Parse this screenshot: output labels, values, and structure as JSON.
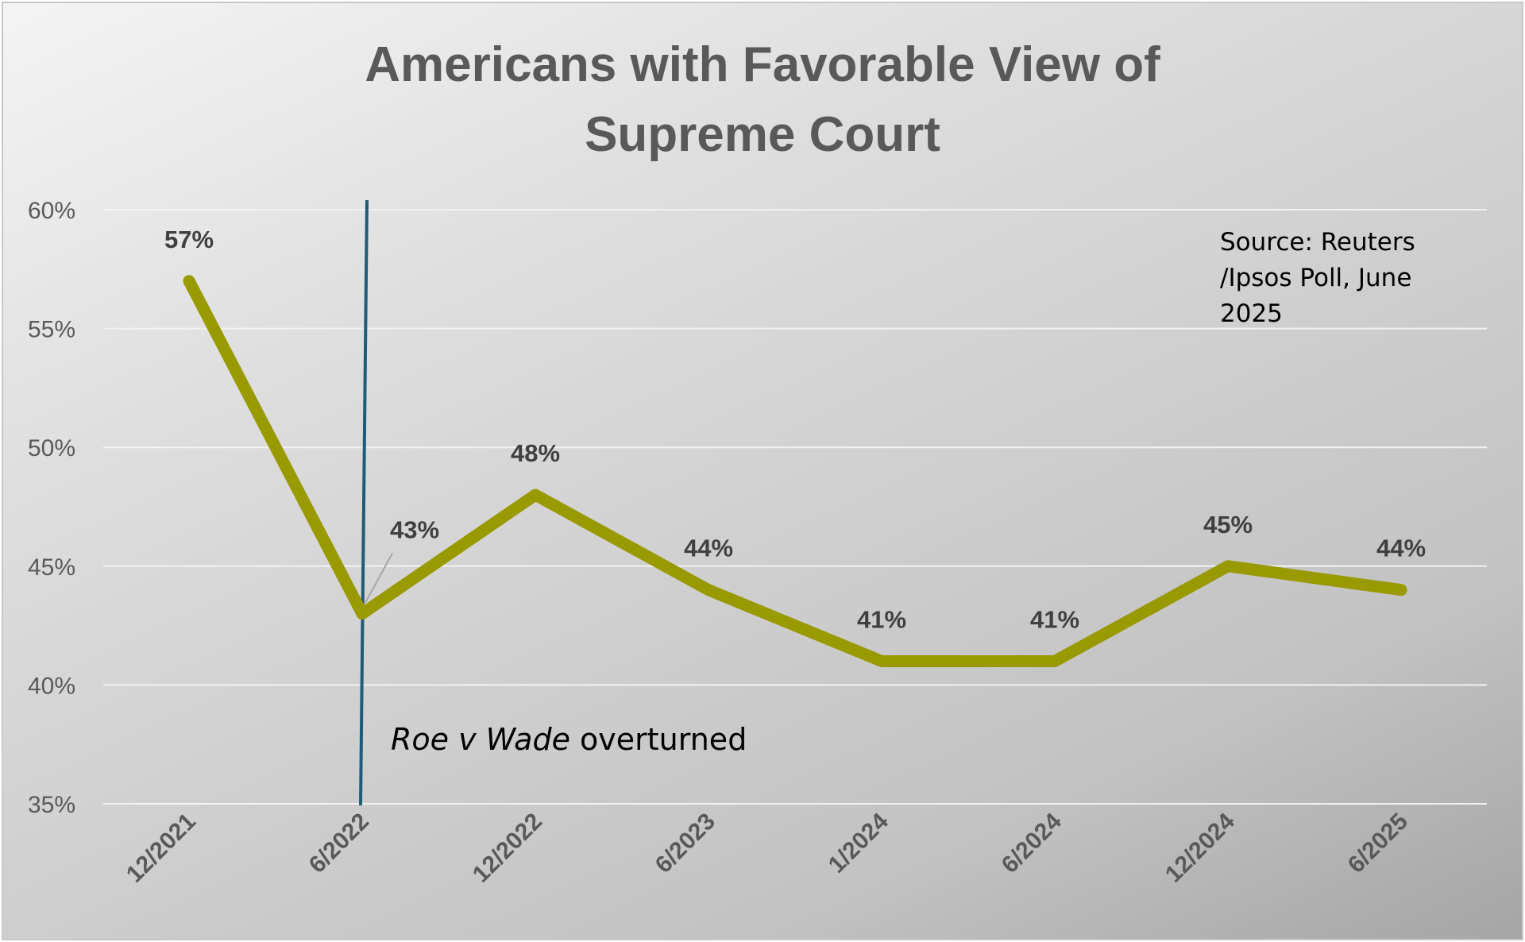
{
  "chart_data": {
    "type": "line",
    "title": "Americans with Favorable View of Supreme Court",
    "title_lines": [
      "Americans with Favorable View of",
      "Supreme Court"
    ],
    "categories": [
      "12/2021",
      "6/2022",
      "12/2022",
      "6/2023",
      "1/2024",
      "6/2024",
      "12/2024",
      "6/2025"
    ],
    "series": [
      {
        "values": [
          57,
          43,
          48,
          44,
          41,
          41,
          45,
          44
        ],
        "color": "#999900"
      }
    ],
    "data_labels": [
      "57%",
      "43%",
      "48%",
      "44%",
      "41%",
      "41%",
      "45%",
      "44%"
    ],
    "y_ticks": [
      {
        "value": 60,
        "label": "60%"
      },
      {
        "value": 55,
        "label": "55%"
      },
      {
        "value": 50,
        "label": "50%"
      },
      {
        "value": 45,
        "label": "45%"
      },
      {
        "value": 40,
        "label": "40%"
      },
      {
        "value": 35,
        "label": "35%"
      }
    ],
    "ylim": [
      35,
      60
    ],
    "grid": true,
    "source_note": [
      "Source: Reuters",
      "/Ipsos Poll, June",
      "2025"
    ],
    "event_marker": {
      "category": "6/2022",
      "label_italic": "Roe v Wade",
      "label_rest": " overturned",
      "color": "#1f5a78"
    },
    "line_color": "#999900",
    "gridline_color": "#f2f2f2"
  }
}
